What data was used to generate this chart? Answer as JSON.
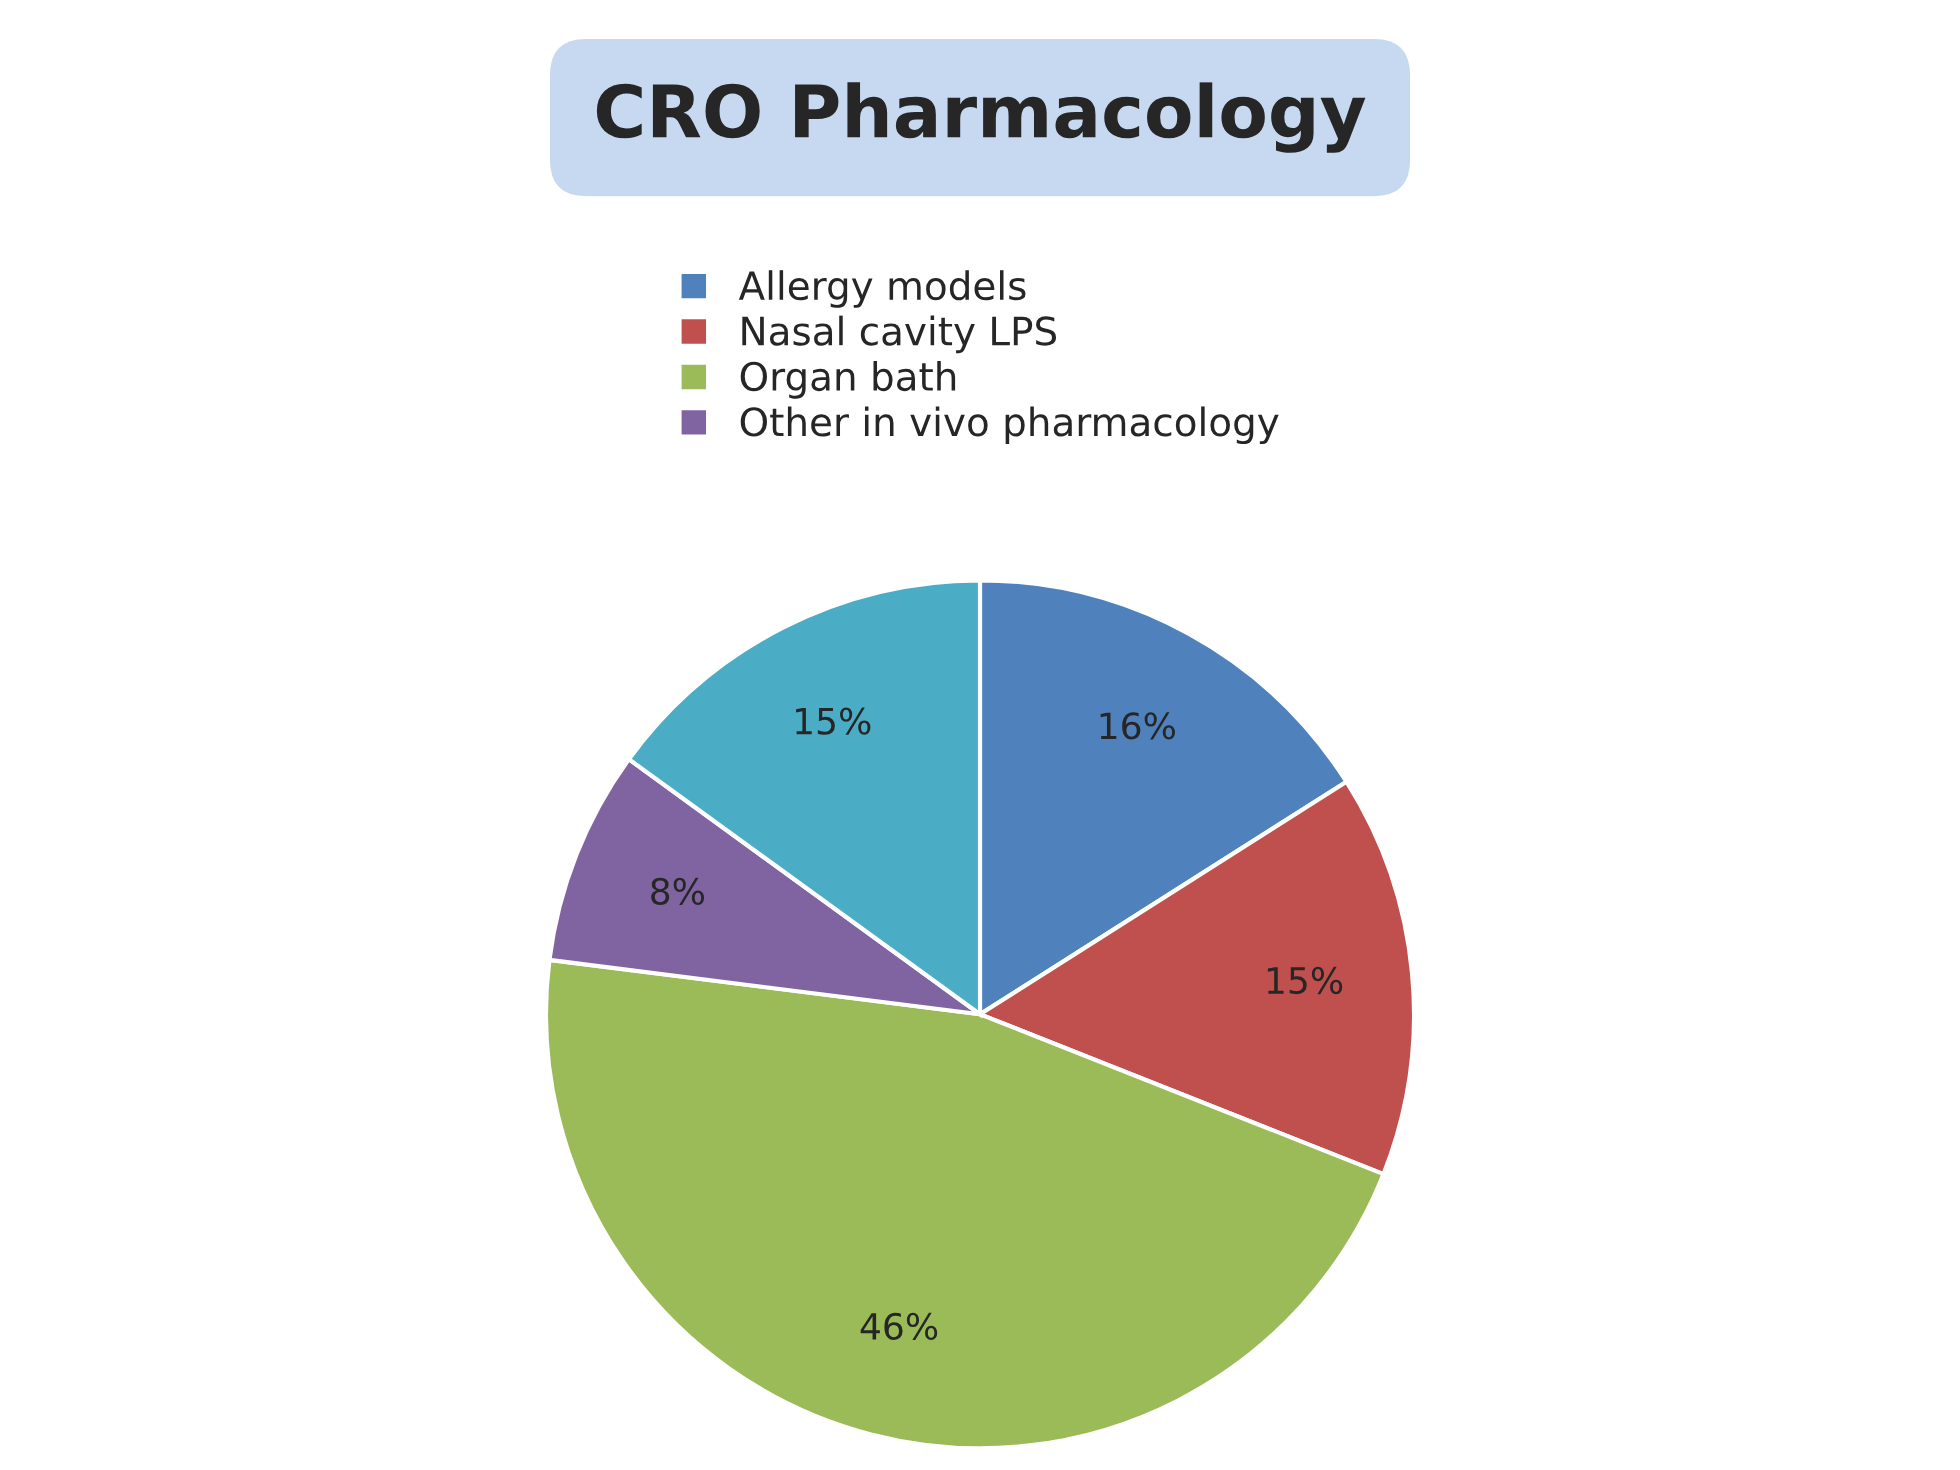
{
  "chart_data": {
    "type": "pie",
    "title": "CRO Pharmacology",
    "categories": [
      "Allergy models",
      "Nasal cavity LPS",
      "Organ bath",
      "Other in vivo pharmacology",
      null
    ],
    "values": [
      16,
      15,
      46,
      8,
      15
    ],
    "colors": [
      "#4f81bd",
      "#c0504d",
      "#9bbb59",
      "#8064a2",
      "#4bacc6"
    ],
    "value_labels": [
      "16%",
      "15%",
      "46%",
      "8%",
      "15%"
    ],
    "legend": "top"
  }
}
